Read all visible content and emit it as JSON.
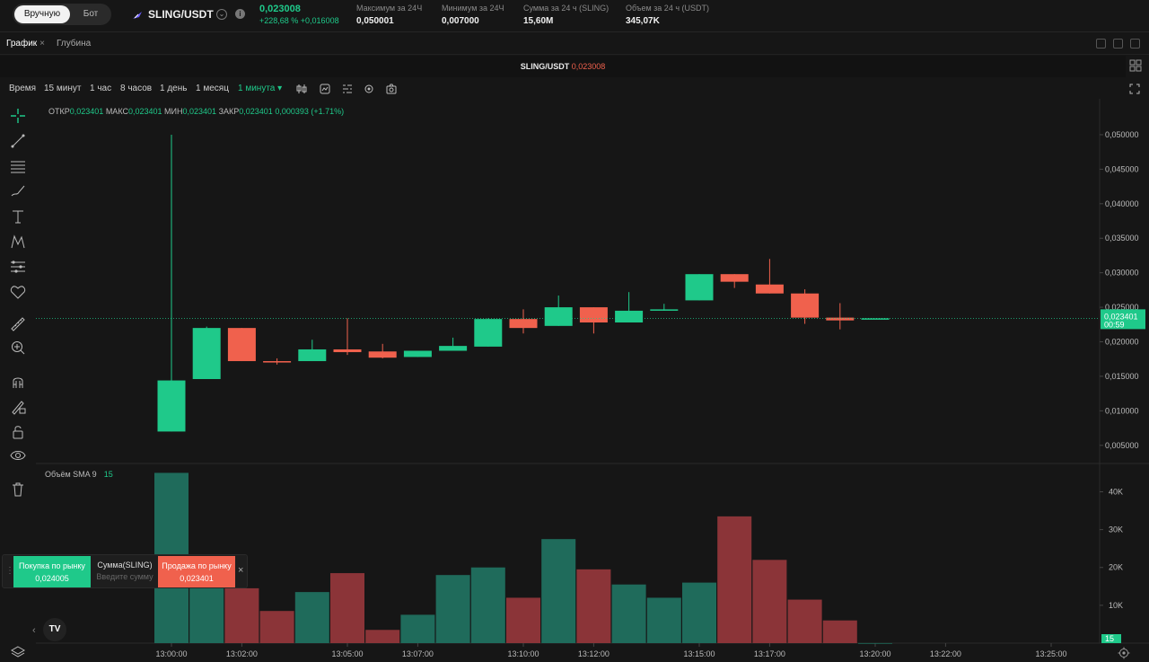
{
  "topbar": {
    "mode_manual": "Вручную",
    "mode_bot": "Бот",
    "pair": "SLING/USDT",
    "price": "0,023008",
    "change": "+228,68 %  +0,016008",
    "stats": [
      {
        "label": "Максимум за 24Ч",
        "value": "0,050001"
      },
      {
        "label": "Минимум за 24Ч",
        "value": "0,007000"
      },
      {
        "label": "Сумма за 24 ч (SLING)",
        "value": "15,60M"
      },
      {
        "label": "Объем за 24 ч (USDT)",
        "value": "345,07K"
      }
    ]
  },
  "tabs": {
    "chart": "График",
    "depth": "Глубина",
    "close": "×"
  },
  "chart_title": {
    "pair": "SLING/USDT",
    "price": "0,023008"
  },
  "toolbar": {
    "time": "Время",
    "intervals": [
      "15 минут",
      "1 час",
      "8 часов",
      "1 день",
      "1 месяц"
    ],
    "selected": "1 минута ▾"
  },
  "ohlc": {
    "open_label": "ОТКР",
    "open": "0,023401",
    "high_label": "МАКС",
    "high": "0,023401",
    "low_label": "МИН",
    "low": "0,023401",
    "close_label": "ЗАКР",
    "close": "0,023401",
    "change": "0,000393 (+1.71%)"
  },
  "volume_label": {
    "title": "Объём SMA 9",
    "value": "15"
  },
  "order": {
    "buy_label": "Покупка по рынку",
    "buy_price": "0,024005",
    "amount_label": "Сумма(SLING)",
    "amount_placeholder": "Введите сумму",
    "sell_label": "Продажа по рынку",
    "sell_price": "0,023401",
    "close": "×"
  },
  "tv_logo": "TV",
  "colors": {
    "up": "#1fc98a",
    "down": "#f0614d",
    "vol_up": "#1f6b5b",
    "vol_down": "#8b3438"
  },
  "chart_data": {
    "type": "candlestick",
    "price_axis_ticks": [
      "0,050000",
      "0,045000",
      "0,040000",
      "0,035000",
      "0,030000",
      "0,025000",
      "0,020000",
      "0,015000",
      "0,010000",
      "0,005000"
    ],
    "price_ylim": [
      0.0025,
      0.0552
    ],
    "current_price_label": "0,023401",
    "countdown": "00:59",
    "volume_axis_ticks": [
      "40K",
      "30K",
      "20K",
      "10K"
    ],
    "volume_ylim": [
      0,
      47000
    ],
    "current_volume_label": "15",
    "time_ticks": [
      {
        "label": "13:00:00",
        "index": 0
      },
      {
        "label": "13:02:00",
        "index": 2
      },
      {
        "label": "13:05:00",
        "index": 5
      },
      {
        "label": "13:07:00",
        "index": 7
      },
      {
        "label": "13:10:00",
        "index": 10
      },
      {
        "label": "13:12:00",
        "index": 12
      },
      {
        "label": "13:15:00",
        "index": 15
      },
      {
        "label": "13:17:00",
        "index": 17
      },
      {
        "label": "13:20:00",
        "index": 20
      },
      {
        "label": "13:22:00",
        "index": 22
      },
      {
        "label": "13:25:00",
        "index": 25
      }
    ],
    "candles": [
      {
        "o": 0.007,
        "h": 0.05,
        "l": 0.007,
        "c": 0.0144,
        "v": 45000
      },
      {
        "o": 0.0146,
        "h": 0.0222,
        "l": 0.0146,
        "c": 0.022,
        "v": 22000
      },
      {
        "o": 0.022,
        "h": 0.022,
        "l": 0.0172,
        "c": 0.0172,
        "v": 14500
      },
      {
        "o": 0.0172,
        "h": 0.0176,
        "l": 0.0167,
        "c": 0.017,
        "v": 8500
      },
      {
        "o": 0.0172,
        "h": 0.0203,
        "l": 0.0172,
        "c": 0.0189,
        "v": 13500
      },
      {
        "o": 0.0189,
        "h": 0.0234,
        "l": 0.0181,
        "c": 0.0185,
        "v": 18500
      },
      {
        "o": 0.0186,
        "h": 0.0197,
        "l": 0.0176,
        "c": 0.0177,
        "v": 3500
      },
      {
        "o": 0.0178,
        "h": 0.0187,
        "l": 0.0178,
        "c": 0.0187,
        "v": 7500
      },
      {
        "o": 0.0187,
        "h": 0.0206,
        "l": 0.0187,
        "c": 0.0194,
        "v": 18000
      },
      {
        "o": 0.0193,
        "h": 0.0234,
        "l": 0.0193,
        "c": 0.0233,
        "v": 20000
      },
      {
        "o": 0.0233,
        "h": 0.0247,
        "l": 0.0212,
        "c": 0.022,
        "v": 12000
      },
      {
        "o": 0.0223,
        "h": 0.0267,
        "l": 0.0223,
        "c": 0.025,
        "v": 27500
      },
      {
        "o": 0.025,
        "h": 0.025,
        "l": 0.0212,
        "c": 0.0228,
        "v": 19500
      },
      {
        "o": 0.0228,
        "h": 0.0272,
        "l": 0.0228,
        "c": 0.0245,
        "v": 15500
      },
      {
        "o": 0.0245,
        "h": 0.0255,
        "l": 0.0245,
        "c": 0.0247,
        "v": 12000
      },
      {
        "o": 0.026,
        "h": 0.0298,
        "l": 0.026,
        "c": 0.0298,
        "v": 16000
      },
      {
        "o": 0.0298,
        "h": 0.0298,
        "l": 0.0278,
        "c": 0.0287,
        "v": 33500
      },
      {
        "o": 0.0283,
        "h": 0.032,
        "l": 0.027,
        "c": 0.027,
        "v": 22000
      },
      {
        "o": 0.027,
        "h": 0.0276,
        "l": 0.0226,
        "c": 0.0235,
        "v": 11500
      },
      {
        "o": 0.0235,
        "h": 0.0256,
        "l": 0.0218,
        "c": 0.0231,
        "v": 6000
      },
      {
        "o": 0.0234,
        "h": 0.0234,
        "l": 0.0234,
        "c": 0.0234,
        "v": 15
      }
    ]
  }
}
